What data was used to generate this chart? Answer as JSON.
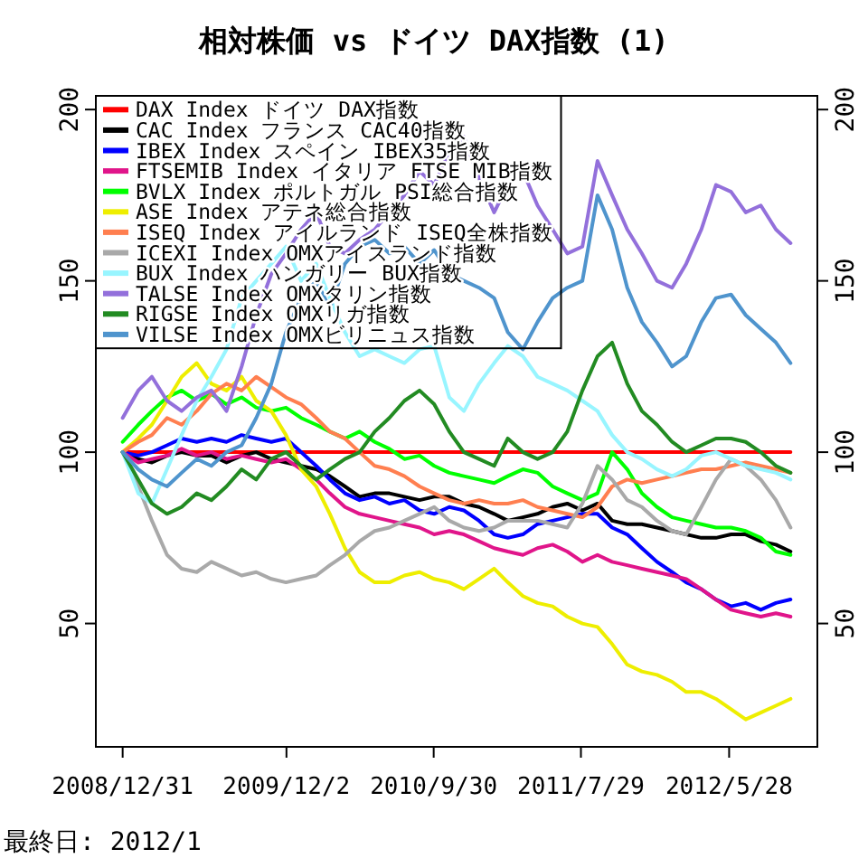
{
  "chart_data": {
    "type": "line",
    "title": "相対株価 vs ドイツ DAX指数 (1)",
    "annotations": [
      "最終日: 2012/1"
    ],
    "legend": "top left",
    "x": [
      "2008-12-31",
      "2009-02-01",
      "2009-03-01",
      "2009-04-01",
      "2009-05-01",
      "2009-06-01",
      "2009-07-01",
      "2009-08-01",
      "2009-09-01",
      "2009-10-01",
      "2009-11-01",
      "2009-12-01",
      "2010-01-01",
      "2010-02-01",
      "2010-03-01",
      "2010-04-01",
      "2010-05-01",
      "2010-06-01",
      "2010-07-01",
      "2010-08-01",
      "2010-09-01",
      "2010-10-01",
      "2010-11-01",
      "2010-12-01",
      "2011-01-01",
      "2011-02-01",
      "2011-03-01",
      "2011-04-01",
      "2011-05-01",
      "2011-06-01",
      "2011-07-01",
      "2011-08-01",
      "2011-09-01",
      "2011-10-01",
      "2011-11-01",
      "2011-12-01",
      "2012-01-01",
      "2012-02-01",
      "2012-03-01",
      "2012-04-01",
      "2012-05-01",
      "2012-06-01",
      "2012-07-01",
      "2012-08-01",
      "2012-09-01",
      "2012-10-01"
    ],
    "xlim": [
      "2008-11-06",
      "2012-11-25"
    ],
    "xticks": [
      {
        "value": "2008-12-31",
        "label": "2008/12/31"
      },
      {
        "value": "2009-12-02",
        "label": "2009/12/2"
      },
      {
        "value": "2010-09-30",
        "label": "2010/9/30"
      },
      {
        "value": "2011-07-29",
        "label": "2011/7/29"
      },
      {
        "value": "2012-05-28",
        "label": "2012/5/28"
      }
    ],
    "ylim": [
      14,
      204
    ],
    "yticks": [
      50,
      100,
      150,
      200
    ],
    "y2lim": [
      14,
      204
    ],
    "y2ticks": [
      50,
      100,
      150,
      200
    ],
    "series": [
      {
        "name": "DAX Index ドイツ DAX指数",
        "color": "#ff0000",
        "values": [
          100,
          100,
          100,
          100,
          100,
          100,
          100,
          100,
          100,
          100,
          100,
          100,
          100,
          100,
          100,
          100,
          100,
          100,
          100,
          100,
          100,
          100,
          100,
          100,
          100,
          100,
          100,
          100,
          100,
          100,
          100,
          100,
          100,
          100,
          100,
          100,
          100,
          100,
          100,
          100,
          100,
          100,
          100,
          100,
          100,
          100
        ]
      },
      {
        "name": "CAC Index フランス CAC40指数",
        "color": "#000000",
        "values": [
          100,
          98,
          97,
          99,
          100,
          99,
          99,
          97,
          99,
          100,
          98,
          97,
          96,
          95,
          93,
          90,
          87,
          88,
          88,
          87,
          86,
          87,
          87,
          85,
          84,
          82,
          80,
          81,
          82,
          84,
          85,
          83,
          85,
          80,
          79,
          79,
          78,
          77,
          76,
          75,
          75,
          76,
          76,
          74,
          73,
          71
        ]
      },
      {
        "name": "IBEX Index スペイン IBEX35指数",
        "color": "#0000ff",
        "values": [
          100,
          99,
          100,
          102,
          104,
          103,
          104,
          103,
          105,
          104,
          103,
          104,
          100,
          96,
          92,
          88,
          86,
          87,
          85,
          86,
          83,
          82,
          84,
          83,
          80,
          76,
          75,
          76,
          79,
          80,
          81,
          82,
          82,
          78,
          76,
          72,
          68,
          65,
          62,
          60,
          57,
          55,
          56,
          54,
          56,
          57
        ]
      },
      {
        "name": "FTSEMIB Index イタリア FTSE MIB指数",
        "color": "#e0158a",
        "values": [
          100,
          97,
          98,
          99,
          101,
          99,
          100,
          98,
          99,
          98,
          97,
          98,
          95,
          92,
          88,
          84,
          82,
          81,
          80,
          79,
          78,
          76,
          77,
          76,
          74,
          72,
          71,
          70,
          72,
          73,
          71,
          68,
          70,
          68,
          67,
          66,
          65,
          64,
          63,
          60,
          57,
          54,
          53,
          52,
          53,
          52
        ]
      },
      {
        "name": "BVLX Index ポルトガル PSI総合指数",
        "color": "#00ff00",
        "values": [
          103,
          108,
          112,
          116,
          118,
          115,
          117,
          114,
          116,
          113,
          112,
          113,
          110,
          108,
          106,
          104,
          106,
          103,
          101,
          98,
          99,
          96,
          94,
          93,
          92,
          91,
          93,
          95,
          94,
          90,
          88,
          86,
          88,
          100,
          95,
          88,
          84,
          81,
          80,
          79,
          78,
          78,
          77,
          75,
          71,
          70
        ]
      },
      {
        "name": "ASE Index アテネ総合指数",
        "color": "#eeee00",
        "values": [
          100,
          104,
          108,
          115,
          122,
          126,
          120,
          118,
          122,
          115,
          112,
          105,
          95,
          90,
          82,
          72,
          65,
          62,
          62,
          64,
          65,
          63,
          62,
          60,
          63,
          66,
          62,
          58,
          56,
          55,
          52,
          50,
          49,
          44,
          38,
          36,
          35,
          33,
          30,
          30,
          28,
          25,
          22,
          24,
          26,
          28
        ]
      },
      {
        "name": "ISEQ Index アイルランド ISEQ全株指数",
        "color": "#ff7f50",
        "values": [
          100,
          103,
          105,
          110,
          108,
          112,
          117,
          120,
          118,
          122,
          119,
          116,
          114,
          110,
          106,
          104,
          100,
          96,
          95,
          93,
          90,
          88,
          86,
          85,
          86,
          85,
          85,
          86,
          84,
          83,
          82,
          81,
          84,
          90,
          92,
          91,
          92,
          93,
          94,
          95,
          95,
          96,
          97,
          96,
          95,
          94
        ]
      },
      {
        "name": "ICEXI Index OMXアイスランド指数",
        "color": "#a9a9a9",
        "values": [
          100,
          90,
          80,
          70,
          66,
          65,
          68,
          66,
          64,
          65,
          63,
          62,
          63,
          64,
          67,
          70,
          74,
          77,
          78,
          80,
          82,
          84,
          80,
          78,
          77,
          78,
          80,
          80,
          80,
          79,
          78,
          85,
          96,
          92,
          86,
          84,
          80,
          77,
          76,
          84,
          92,
          98,
          96,
          92,
          86,
          78
        ]
      },
      {
        "name": "BUX Index ハンガリー BUX指数",
        "color": "#98f5ff",
        "values": [
          100,
          88,
          85,
          95,
          105,
          115,
          122,
          130,
          145,
          150,
          155,
          160,
          150,
          155,
          145,
          135,
          128,
          130,
          128,
          126,
          130,
          131,
          116,
          112,
          120,
          126,
          131,
          128,
          122,
          120,
          118,
          115,
          112,
          105,
          100,
          98,
          95,
          93,
          95,
          99,
          100,
          98,
          96,
          95,
          94,
          92
        ]
      },
      {
        "name": "TALSE Index OMXタリン指数",
        "color": "#9370db",
        "values": [
          110,
          118,
          122,
          115,
          112,
          116,
          118,
          112,
          125,
          140,
          152,
          158,
          165,
          170,
          160,
          158,
          162,
          165,
          170,
          175,
          182,
          178,
          188,
          192,
          180,
          170,
          178,
          182,
          172,
          165,
          158,
          160,
          185,
          175,
          165,
          158,
          150,
          148,
          155,
          165,
          178,
          176,
          170,
          172,
          165,
          161
        ]
      },
      {
        "name": "RIGSE Index OMXリガ指数",
        "color": "#228b22",
        "values": [
          100,
          92,
          85,
          82,
          84,
          88,
          86,
          90,
          95,
          92,
          98,
          100,
          96,
          92,
          95,
          98,
          100,
          106,
          110,
          115,
          118,
          114,
          106,
          100,
          98,
          96,
          104,
          100,
          98,
          100,
          106,
          118,
          128,
          132,
          120,
          112,
          108,
          103,
          100,
          102,
          104,
          104,
          103,
          100,
          96,
          94
        ]
      },
      {
        "name": "VILSE Index OMXビリニュス指数",
        "color": "#4f94cd",
        "values": [
          100,
          95,
          92,
          90,
          94,
          98,
          96,
          100,
          102,
          110,
          120,
          135,
          145,
          150,
          142,
          155,
          160,
          162,
          158,
          160,
          155,
          159,
          152,
          150,
          148,
          145,
          135,
          130,
          138,
          145,
          148,
          150,
          175,
          165,
          148,
          138,
          132,
          125,
          128,
          138,
          145,
          146,
          140,
          136,
          132,
          126
        ]
      }
    ]
  }
}
